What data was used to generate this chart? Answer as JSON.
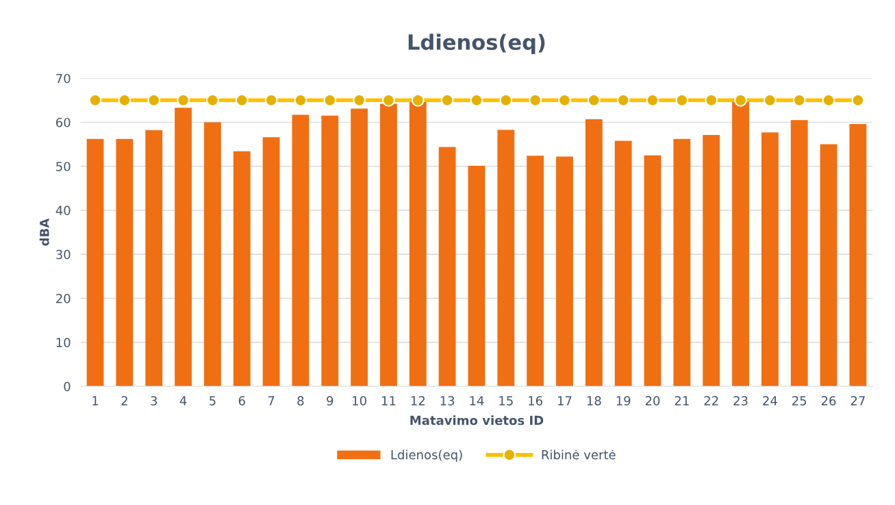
{
  "chart_data": {
    "type": "bar",
    "title": "Ldienos(eq)",
    "xlabel": "Matavimo vietos ID",
    "ylabel": "dBA",
    "categories": [
      "1",
      "2",
      "3",
      "4",
      "5",
      "6",
      "7",
      "8",
      "9",
      "10",
      "11",
      "12",
      "13",
      "14",
      "15",
      "16",
      "17",
      "18",
      "19",
      "20",
      "21",
      "22",
      "23",
      "24",
      "25",
      "26",
      "27"
    ],
    "series": [
      {
        "name": "Ldienos(eq)",
        "color": "#f06f13",
        "values": [
          56.2,
          56.2,
          58.2,
          63.3,
          60.0,
          53.4,
          56.6,
          61.7,
          61.5,
          63.1,
          64.2,
          64.6,
          54.4,
          50.1,
          58.3,
          52.4,
          52.2,
          60.7,
          55.8,
          52.5,
          56.2,
          57.1,
          64.6,
          57.7,
          60.5,
          55.0,
          59.6
        ]
      },
      {
        "name": "Ribinė vertė",
        "type": "line",
        "color": "#ffc000",
        "marker": "circle",
        "values": [
          65,
          65,
          65,
          65,
          65,
          65,
          65,
          65,
          65,
          65,
          65,
          65,
          65,
          65,
          65,
          65,
          65,
          65,
          65,
          65,
          65,
          65,
          65,
          65,
          65,
          65,
          65
        ]
      }
    ],
    "ylim": [
      0,
      70
    ],
    "yticks": [
      0,
      10,
      20,
      30,
      40,
      50,
      60,
      70
    ],
    "grid": "y",
    "legend": "bottom"
  }
}
